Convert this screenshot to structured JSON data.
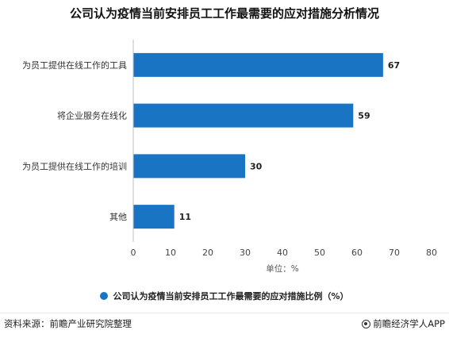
{
  "title": "公司认为疫情当前安排员工工作最需要的应对措施分析情况",
  "chart_data": {
    "type": "bar",
    "orientation": "horizontal",
    "title": "公司认为疫情当前安排员工工作最需要的应对措施分析情况",
    "categories": [
      "为员工提供在线工作的工具",
      "将企业服务在线化",
      "为员工提供在线工作的培训",
      "其他"
    ],
    "series": [
      {
        "name": "公司认为疫情当前安排员工工作最需要的应对措施比例（%）",
        "values": [
          67,
          59,
          30,
          11
        ]
      }
    ],
    "xlabel": "单位：%",
    "xlim": [
      0,
      80
    ],
    "xticks": [
      0,
      10,
      20,
      30,
      40,
      50,
      60,
      70,
      80
    ],
    "grid": false,
    "legend_position": "bottom",
    "bar_color": "#1a74c4"
  },
  "footer": {
    "source": "资料来源：前瞻产业研究院整理",
    "brand": "前瞻经济学人APP"
  }
}
